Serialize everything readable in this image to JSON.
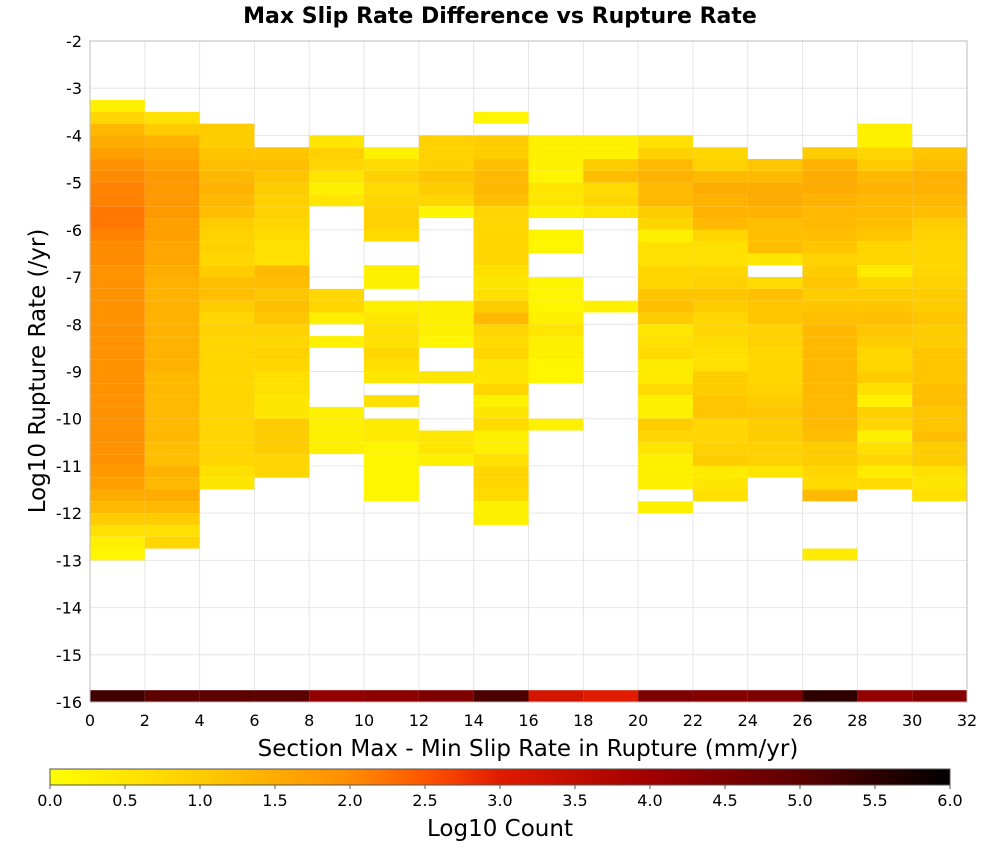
{
  "chart_data": {
    "type": "heatmap",
    "title": "Max Slip Rate Difference vs Rupture Rate",
    "xlabel": "Section Max - Min Slip Rate in Rupture (mm/yr)",
    "ylabel": "Log10 Rupture Rate (/yr)",
    "xlim": [
      0,
      32
    ],
    "ylim": [
      -16,
      -2
    ],
    "x_bin_width": 2,
    "y_bin_height": 0.25,
    "x_ticks": [
      "0",
      "2",
      "4",
      "6",
      "8",
      "10",
      "12",
      "14",
      "16",
      "18",
      "20",
      "22",
      "24",
      "26",
      "28",
      "30",
      "32"
    ],
    "y_ticks": [
      "-2",
      "-3",
      "-4",
      "-5",
      "-6",
      "-7",
      "-8",
      "-9",
      "-10",
      "-11",
      "-12",
      "-13",
      "-14",
      "-15",
      "-16"
    ],
    "grid": true,
    "colorbar": {
      "label": "Log10 Count",
      "range": [
        0,
        6
      ],
      "ticks": [
        "0.0",
        "0.5",
        "1.0",
        "1.5",
        "2.0",
        "2.5",
        "3.0",
        "3.5",
        "4.0",
        "4.5",
        "5.0",
        "5.5",
        "6.0"
      ],
      "position": "bottom"
    },
    "columns": [
      {
        "x": 1,
        "y_top": -3.25,
        "values": [
          0.3,
          0.8,
          1.3,
          1.5,
          1.7,
          1.9,
          2.0,
          2.1,
          2.1,
          2.2,
          2.2,
          2.1,
          2.0,
          2.0,
          1.9,
          1.9,
          1.9,
          1.9,
          1.9,
          1.9,
          1.9,
          1.9,
          1.9,
          1.9,
          1.9,
          1.9,
          1.9,
          1.9,
          1.9,
          1.9,
          1.9,
          1.8,
          1.7,
          1.5,
          1.3,
          1.0,
          0.6,
          0.3,
          0.2
        ]
      },
      {
        "x": 3,
        "y_top": -3.5,
        "values": [
          0.6,
          1.0,
          1.4,
          1.6,
          1.7,
          1.8,
          1.8,
          1.8,
          1.8,
          1.7,
          1.7,
          1.6,
          1.6,
          1.5,
          1.4,
          1.4,
          1.4,
          1.4,
          1.4,
          1.4,
          1.4,
          1.4,
          1.3,
          1.3,
          1.3,
          1.3,
          1.3,
          1.3,
          1.2,
          1.2,
          1.4,
          1.3,
          1.5,
          1.3,
          1.0,
          0.6,
          0.8
        ]
      },
      {
        "x": 5,
        "y_top": -3.75,
        "values": [
          1.0,
          1.0,
          1.1,
          1.2,
          1.3,
          1.4,
          1.3,
          1.2,
          1.0,
          0.9,
          0.9,
          0.8,
          1.0,
          1.2,
          1.2,
          1.0,
          0.8,
          0.9,
          0.8,
          0.8,
          0.8,
          0.8,
          0.8,
          0.8,
          0.8,
          0.8,
          0.8,
          0.8,
          0.8,
          0.6,
          0.5
        ]
      },
      {
        "x": 7,
        "y_top": -4.25,
        "values": [
          1.1,
          1.2,
          1.1,
          1.0,
          0.9,
          0.9,
          0.8,
          0.7,
          0.6,
          0.6,
          1.3,
          1.2,
          1.1,
          1.2,
          1.1,
          0.9,
          0.8,
          0.9,
          0.8,
          0.6,
          0.6,
          0.5,
          0.5,
          1.0,
          1.0,
          1.0,
          0.8,
          0.8
        ]
      },
      {
        "x": 9,
        "y_top": -4.0,
        "values": [
          0.5,
          0.9,
          0.8,
          0.5,
          0.3,
          0.5,
          null,
          null,
          null,
          null,
          null,
          null,
          null,
          0.8,
          0.8,
          0.3,
          null,
          0.3,
          null,
          null,
          null,
          null,
          null,
          0.3,
          0.3,
          0.3,
          0.3
        ]
      },
      {
        "x": 11,
        "y_top": -4.25,
        "values": [
          0.3,
          0.7,
          0.9,
          0.7,
          0.8,
          0.9,
          0.9,
          0.7,
          null,
          null,
          0.3,
          0.3,
          null,
          0.3,
          0.5,
          0.6,
          0.6,
          0.8,
          0.6,
          0.5,
          null,
          0.6,
          null,
          0.4,
          0.4,
          0.2,
          0.2,
          0.2,
          0.2,
          0.2
        ]
      },
      {
        "x": 13,
        "y_top": -4.0,
        "values": [
          0.9,
          0.9,
          0.9,
          1.1,
          1.0,
          0.8,
          0.2,
          null,
          null,
          null,
          null,
          null,
          null,
          null,
          0.3,
          0.3,
          0.3,
          0.2,
          null,
          null,
          0.5,
          null,
          null,
          null,
          null,
          0.5,
          0.5,
          0.3
        ]
      },
      {
        "x": 15,
        "y_top": -3.5,
        "values": [
          0.2,
          null,
          1.0,
          1.0,
          1.2,
          1.3,
          1.3,
          1.2,
          0.8,
          0.8,
          0.8,
          0.8,
          0.8,
          0.6,
          0.5,
          0.6,
          1.0,
          1.3,
          0.8,
          0.7,
          0.8,
          0.5,
          0.5,
          0.8,
          0.3,
          0.5,
          0.7,
          0.3,
          0.3,
          0.6,
          0.8,
          0.8,
          0.7,
          0.3,
          0.3
        ]
      },
      {
        "x": 17,
        "y_top": -4.0,
        "values": [
          0.3,
          0.3,
          0.3,
          0.2,
          0.5,
          0.5,
          0.3,
          null,
          0.2,
          0.2,
          null,
          null,
          0.2,
          0.2,
          0.2,
          0.3,
          0.5,
          0.3,
          0.3,
          0.2,
          0.2,
          null,
          null,
          null,
          0.3
        ]
      },
      {
        "x": 19,
        "y_top": -4.0,
        "values": [
          0.3,
          0.3,
          1.0,
          1.2,
          0.7,
          0.8,
          0.5,
          null,
          null,
          null,
          null,
          null,
          null,
          null,
          0.3
        ]
      },
      {
        "x": 21,
        "y_top": -4.0,
        "values": [
          0.6,
          0.9,
          1.3,
          1.4,
          1.3,
          1.3,
          1.0,
          0.8,
          0.3,
          0.6,
          0.6,
          0.8,
          0.8,
          1.1,
          1.2,
          1.0,
          0.5,
          0.6,
          0.7,
          0.4,
          0.4,
          0.7,
          0.3,
          0.3,
          1.0,
          0.8,
          0.5,
          0.3,
          0.3,
          0.3,
          null,
          0.3
        ]
      },
      {
        "x": 23,
        "y_top": -4.25,
        "values": [
          0.8,
          0.9,
          1.3,
          1.5,
          1.4,
          1.4,
          1.3,
          0.8,
          0.6,
          0.6,
          0.8,
          0.9,
          1.1,
          1.0,
          0.8,
          0.8,
          0.7,
          0.6,
          0.6,
          1.0,
          1.0,
          1.1,
          1.1,
          0.8,
          0.8,
          0.9,
          1.0,
          0.4,
          0.5,
          0.6
        ]
      },
      {
        "x": 25,
        "y_top": -4.5,
        "values": [
          1.1,
          1.3,
          1.5,
          1.5,
          1.4,
          1.2,
          1.2,
          1.2,
          0.5,
          null,
          0.7,
          1.2,
          1.1,
          1.1,
          0.9,
          0.9,
          0.8,
          0.8,
          0.8,
          0.9,
          1.0,
          1.1,
          1.0,
          1.0,
          0.9,
          0.9,
          0.5
        ]
      },
      {
        "x": 27,
        "y_top": -4.25,
        "values": [
          1.0,
          1.4,
          1.5,
          1.5,
          1.4,
          1.3,
          1.3,
          1.2,
          1.1,
          0.9,
          1.0,
          1.1,
          1.0,
          1.1,
          1.2,
          1.3,
          1.3,
          1.3,
          1.3,
          1.3,
          1.3,
          1.3,
          1.3,
          1.3,
          1.2,
          1.0,
          1.0,
          0.8,
          0.7,
          1.3,
          null,
          null,
          null,
          null,
          0.4
        ]
      },
      {
        "x": 29,
        "y_top": -3.75,
        "values": [
          0.3,
          0.3,
          0.8,
          1.0,
          1.3,
          1.4,
          1.3,
          1.3,
          1.2,
          1.1,
          0.8,
          0.8,
          0.4,
          0.8,
          1.0,
          1.1,
          1.2,
          1.1,
          1.0,
          0.8,
          0.8,
          1.0,
          0.6,
          0.3,
          0.9,
          0.8,
          0.3,
          0.6,
          0.8,
          0.4,
          0.7
        ]
      },
      {
        "x": 31,
        "y_top": -4.25,
        "values": [
          1.1,
          1.2,
          1.4,
          1.4,
          1.3,
          1.2,
          1.0,
          0.9,
          0.8,
          0.8,
          0.8,
          0.9,
          1.0,
          1.0,
          1.1,
          1.0,
          1.0,
          1.1,
          1.1,
          1.1,
          1.2,
          1.2,
          1.1,
          1.1,
          1.2,
          1.0,
          1.0,
          0.6,
          0.5,
          0.6
        ]
      }
    ],
    "bottom_row": {
      "y": -15.875,
      "values": [
        5.3,
        5.0,
        5.0,
        5.0,
        4.2,
        4.3,
        4.5,
        5.2,
        3.2,
        3.0,
        4.5,
        4.4,
        4.5,
        5.5,
        4.2,
        4.4
      ]
    }
  }
}
